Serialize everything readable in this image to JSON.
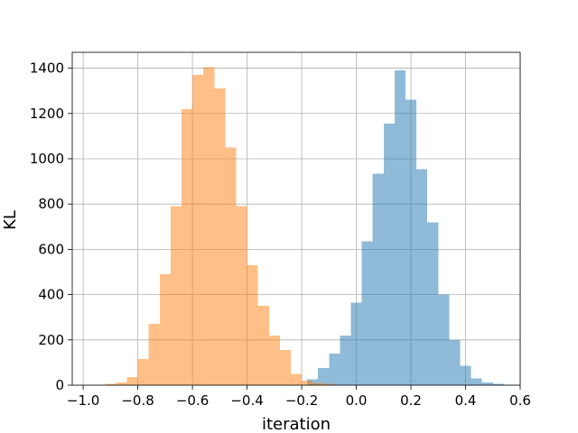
{
  "chart_data": {
    "type": "histogram",
    "xlabel": "iteration",
    "ylabel": "KL",
    "xlim": [
      -1.04,
      0.6
    ],
    "ylim": [
      0,
      1470
    ],
    "grid": true,
    "xticks": [
      -1.0,
      -0.8,
      -0.6,
      -0.4,
      -0.2,
      0.0,
      0.2,
      0.4,
      0.6
    ],
    "xtick_labels": [
      "−1.0",
      "−0.8",
      "−0.6",
      "−0.4",
      "−0.2",
      "0.0",
      "0.2",
      "0.4",
      "0.6"
    ],
    "yticks": [
      0,
      200,
      400,
      600,
      800,
      1000,
      1200,
      1400
    ],
    "ytick_labels": [
      "0",
      "200",
      "400",
      "600",
      "800",
      "1000",
      "1200",
      "1400"
    ],
    "series": [
      {
        "color": "#1f77b4",
        "opacity": 0.5,
        "bin_edges": [
          -0.18,
          -0.14,
          -0.1,
          -0.06,
          -0.02,
          0.02,
          0.06,
          0.1,
          0.14,
          0.18,
          0.22,
          0.26,
          0.3,
          0.34,
          0.38,
          0.42,
          0.46,
          0.5,
          0.54,
          0.58
        ],
        "counts": [
          25,
          75,
          140,
          220,
          365,
          635,
          935,
          1155,
          1390,
          1260,
          955,
          720,
          400,
          200,
          85,
          30,
          12,
          5,
          2
        ]
      },
      {
        "color": "#ff7f0e",
        "opacity": 0.5,
        "bin_edges": [
          -0.92,
          -0.88,
          -0.84,
          -0.8,
          -0.76,
          -0.72,
          -0.68,
          -0.64,
          -0.6,
          -0.56,
          -0.52,
          -0.48,
          -0.44,
          -0.4,
          -0.36,
          -0.32,
          -0.28,
          -0.24,
          -0.2,
          -0.16,
          -0.12,
          -0.08
        ],
        "counts": [
          5,
          12,
          35,
          115,
          270,
          490,
          790,
          1220,
          1370,
          1405,
          1310,
          1050,
          790,
          530,
          350,
          220,
          155,
          50,
          20,
          10,
          5
        ]
      }
    ]
  }
}
